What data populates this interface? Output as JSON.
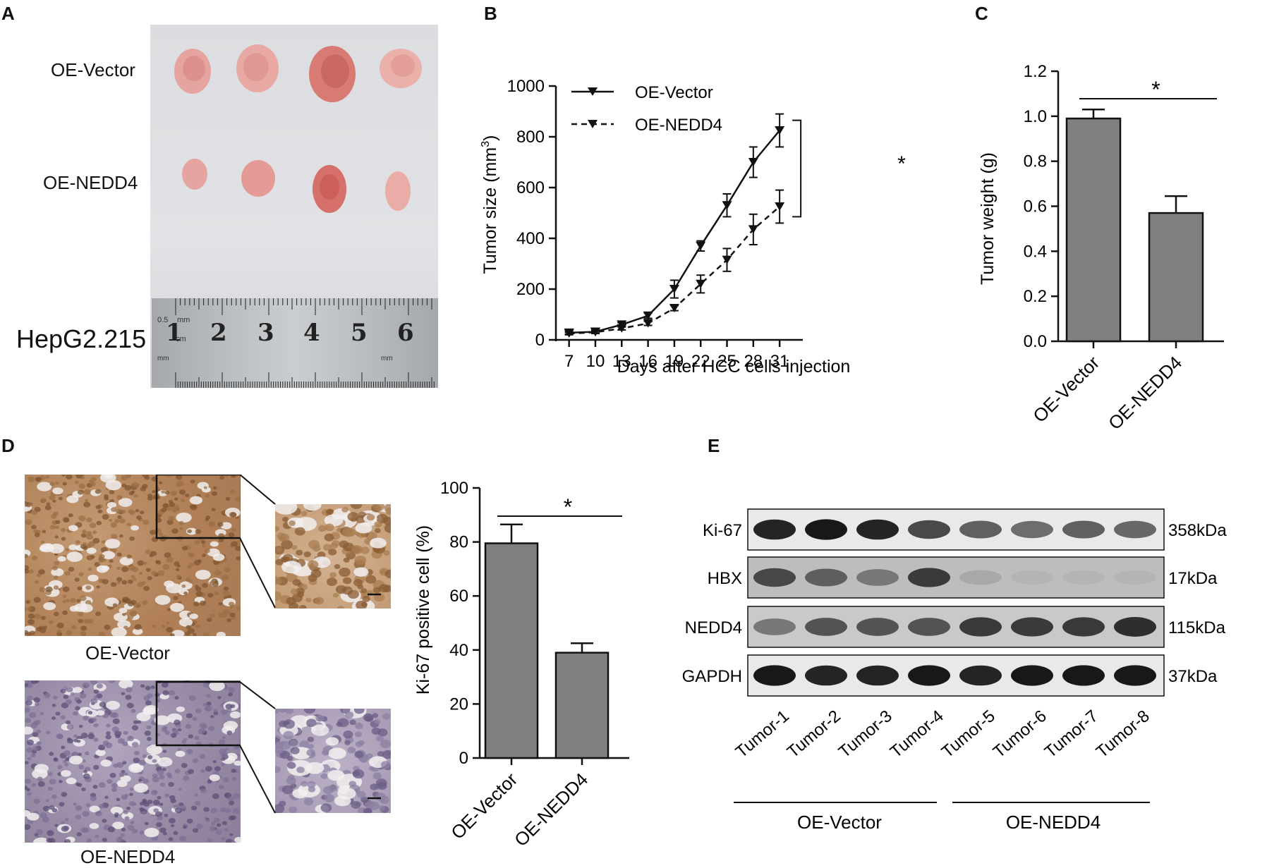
{
  "panels": {
    "A": {
      "label": "A",
      "row_labels": [
        "OE-Vector",
        "OE-NEDD4"
      ],
      "cell_line": "HepG2.215",
      "ruler_numbers": [
        "1",
        "2",
        "3",
        "4",
        "5",
        "6"
      ],
      "ruler_small": [
        "0.5",
        "mm",
        "cm",
        "mm",
        "mm"
      ],
      "tissue_color": "#e8a3a0"
    },
    "B": {
      "label": "B"
    },
    "C": {
      "label": "C"
    },
    "D": {
      "label": "D",
      "image_labels": [
        "OE-Vector",
        "OE-NEDD4"
      ],
      "colors": {
        "vector_stain": "#b58a63",
        "nedd4_stain": "#9a8aa8"
      }
    },
    "E": {
      "label": "E",
      "bands": [
        {
          "name": "Ki-67",
          "kda": "358kDa"
        },
        {
          "name": "HBX",
          "kda": "17kDa"
        },
        {
          "name": "NEDD4",
          "kda": "115kDa"
        },
        {
          "name": "GAPDH",
          "kda": "37kDa"
        }
      ],
      "band_intensity": [
        [
          0.9,
          0.95,
          0.9,
          0.75,
          0.65,
          0.6,
          0.65,
          0.62
        ],
        [
          0.75,
          0.65,
          0.55,
          0.8,
          0.35,
          0.3,
          0.3,
          0.3
        ],
        [
          0.55,
          0.7,
          0.7,
          0.7,
          0.8,
          0.8,
          0.8,
          0.85
        ],
        [
          0.95,
          0.9,
          0.9,
          0.95,
          0.9,
          0.95,
          0.95,
          0.95
        ]
      ],
      "lanes": [
        "Tumor-1",
        "Tumor-2",
        "Tumor-3",
        "Tumor-4",
        "Tumor-5",
        "Tumor-6",
        "Tumor-7",
        "Tumor-8"
      ],
      "groups": [
        "OE-Vector",
        "OE-NEDD4"
      ]
    }
  },
  "chart_data": [
    {
      "type": "line",
      "xlabel": "Days after HCC cells injection",
      "ylabel": "Tumor size (mm³)",
      "ylabel_main": "Tumor size (mm",
      "ylabel_sup": "3",
      "ylabel_close": ")",
      "x": [
        7,
        10,
        13,
        16,
        19,
        22,
        25,
        28,
        31
      ],
      "xticks": [
        "7",
        "10",
        "13",
        "16",
        "19",
        "22",
        "25",
        "28",
        "31"
      ],
      "ylim": [
        0,
        1000
      ],
      "yticks": [
        "0",
        "200",
        "400",
        "600",
        "800",
        "1000"
      ],
      "series": [
        {
          "name": "OE-Vector",
          "style": "solid",
          "values": [
            28,
            32,
            60,
            95,
            200,
            370,
            530,
            700,
            825
          ],
          "errors": [
            5,
            5,
            8,
            10,
            35,
            20,
            45,
            60,
            65
          ]
        },
        {
          "name": "OE-NEDD4",
          "style": "dashed",
          "values": [
            25,
            30,
            45,
            65,
            125,
            220,
            315,
            435,
            525
          ],
          "errors": [
            5,
            5,
            6,
            8,
            10,
            35,
            45,
            60,
            65
          ]
        }
      ],
      "significance": "*",
      "legend": "top-left"
    },
    {
      "type": "bar",
      "ylabel": "Tumor weight (g)",
      "categories": [
        "OE-Vector",
        "OE-NEDD4"
      ],
      "values": [
        0.99,
        0.57
      ],
      "errors": [
        0.04,
        0.075
      ],
      "ylim": [
        0,
        1.2
      ],
      "yticks": [
        "0.0",
        "0.2",
        "0.4",
        "0.6",
        "0.8",
        "1.0",
        "1.2"
      ],
      "significance": "*",
      "bar_color": "#808080"
    },
    {
      "type": "bar",
      "ylabel": "Ki-67 positive cell (%)",
      "categories": [
        "OE-Vector",
        "OE-NEDD4"
      ],
      "values": [
        79.5,
        39
      ],
      "errors": [
        7,
        3.5
      ],
      "ylim": [
        0,
        100
      ],
      "yticks": [
        "0",
        "20",
        "40",
        "60",
        "80",
        "100"
      ],
      "significance": "*",
      "bar_color": "#808080"
    }
  ]
}
